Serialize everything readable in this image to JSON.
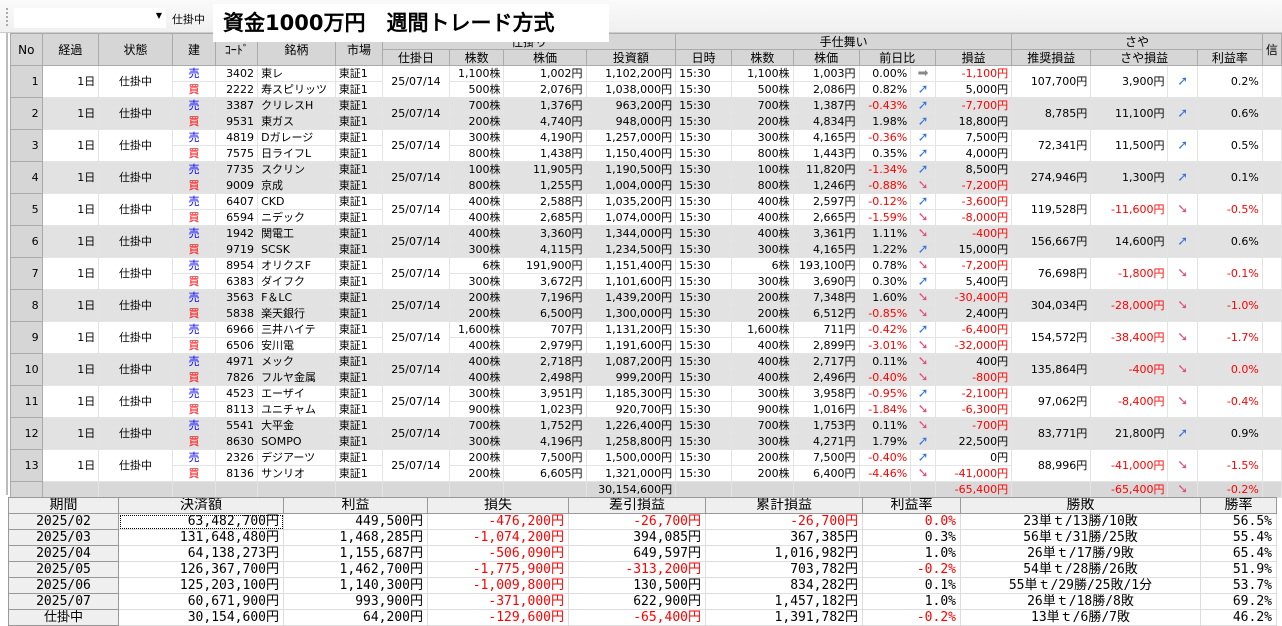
{
  "toolbar": {
    "combo_value": "",
    "status_filter": "仕掛中",
    "title": "資金1000万円　週間トレード方式"
  },
  "colors": {
    "negative": "#ff0000",
    "sell": "#0000ff",
    "buy": "#ff0000",
    "arrow_up": "#3a78d8",
    "arrow_down": "#e0507a"
  },
  "headers": {
    "no": "No",
    "elapsed": "経過",
    "status": "状態",
    "side": "建",
    "code": "ｺｰﾄﾞ",
    "name": "銘柄",
    "market": "市場",
    "entry_group": "仕掛り",
    "entry_date": "仕掛日",
    "entry_qty": "株数",
    "entry_price": "株価",
    "invest": "投資額",
    "exit_group": "手仕舞い",
    "time": "日時",
    "qty": "株数",
    "price": "株価",
    "change": "前日比",
    "pl": "損益",
    "saya_group": "さや",
    "rec_pl": "推奨損益",
    "saya_pl": "さや損益",
    "rate": "利益率",
    "extra": "信"
  },
  "rows": [
    {
      "no": "1",
      "elapsed": "1日",
      "status": "仕掛中",
      "date": "25/07/14",
      "rec_pl": "107,700円",
      "saya_pl": "3,900円",
      "saya_dir": "up",
      "rate": "0.2%",
      "legs": [
        {
          "side": "売",
          "code": "3402",
          "name": "東レ",
          "market": "東証1",
          "qty": "1,100株",
          "price": "1,002円",
          "invest": "1,102,200円",
          "time": "15:30",
          "cur_qty": "1,100株",
          "cur_price": "1,003円",
          "change": "0.00%",
          "dir": "flat",
          "pl": "-1,100円"
        },
        {
          "side": "買",
          "code": "2222",
          "name": "寿スピリッツ",
          "market": "東証1",
          "qty": "500株",
          "price": "2,076円",
          "invest": "1,038,000円",
          "time": "15:30",
          "cur_qty": "500株",
          "cur_price": "2,086円",
          "change": "0.82%",
          "dir": "up",
          "pl": "5,000円"
        }
      ]
    },
    {
      "no": "2",
      "elapsed": "1日",
      "status": "仕掛中",
      "date": "25/07/14",
      "rec_pl": "8,785円",
      "saya_pl": "11,100円",
      "saya_dir": "up",
      "rate": "0.6%",
      "legs": [
        {
          "side": "売",
          "code": "3387",
          "name": "クリレスH",
          "market": "東証1",
          "qty": "700株",
          "price": "1,376円",
          "invest": "963,200円",
          "time": "15:30",
          "cur_qty": "700株",
          "cur_price": "1,387円",
          "change": "-0.43%",
          "dir": "up",
          "pl": "-7,700円"
        },
        {
          "side": "買",
          "code": "9531",
          "name": "東ガス",
          "market": "東証1",
          "qty": "200株",
          "price": "4,740円",
          "invest": "948,000円",
          "time": "15:30",
          "cur_qty": "200株",
          "cur_price": "4,834円",
          "change": "1.98%",
          "dir": "up",
          "pl": "18,800円"
        }
      ]
    },
    {
      "no": "3",
      "elapsed": "1日",
      "status": "仕掛中",
      "date": "25/07/14",
      "rec_pl": "72,341円",
      "saya_pl": "11,500円",
      "saya_dir": "up",
      "rate": "0.5%",
      "legs": [
        {
          "side": "売",
          "code": "4819",
          "name": "Dガレージ",
          "market": "東証1",
          "qty": "300株",
          "price": "4,190円",
          "invest": "1,257,000円",
          "time": "15:30",
          "cur_qty": "300株",
          "cur_price": "4,165円",
          "change": "-0.36%",
          "dir": "up",
          "pl": "7,500円"
        },
        {
          "side": "買",
          "code": "7575",
          "name": "日ライフL",
          "market": "東証1",
          "qty": "800株",
          "price": "1,438円",
          "invest": "1,150,400円",
          "time": "15:30",
          "cur_qty": "800株",
          "cur_price": "1,443円",
          "change": "0.35%",
          "dir": "up",
          "pl": "4,000円"
        }
      ]
    },
    {
      "no": "4",
      "elapsed": "1日",
      "status": "仕掛中",
      "date": "25/07/14",
      "rec_pl": "274,946円",
      "saya_pl": "1,300円",
      "saya_dir": "up",
      "rate": "0.1%",
      "legs": [
        {
          "side": "売",
          "code": "7735",
          "name": "スクリン",
          "market": "東証1",
          "qty": "100株",
          "price": "11,905円",
          "invest": "1,190,500円",
          "time": "15:30",
          "cur_qty": "100株",
          "cur_price": "11,820円",
          "change": "-1.34%",
          "dir": "up",
          "pl": "8,500円"
        },
        {
          "side": "買",
          "code": "9009",
          "name": "京成",
          "market": "東証1",
          "qty": "800株",
          "price": "1,255円",
          "invest": "1,004,000円",
          "time": "15:30",
          "cur_qty": "800株",
          "cur_price": "1,246円",
          "change": "-0.88%",
          "dir": "down",
          "pl": "-7,200円"
        }
      ]
    },
    {
      "no": "5",
      "elapsed": "1日",
      "status": "仕掛中",
      "date": "25/07/14",
      "rec_pl": "119,528円",
      "saya_pl": "-11,600円",
      "saya_dir": "down",
      "rate": "-0.5%",
      "legs": [
        {
          "side": "売",
          "code": "6407",
          "name": "CKD",
          "market": "東証1",
          "qty": "400株",
          "price": "2,588円",
          "invest": "1,035,200円",
          "time": "15:30",
          "cur_qty": "400株",
          "cur_price": "2,597円",
          "change": "-0.12%",
          "dir": "up",
          "pl": "-3,600円"
        },
        {
          "side": "買",
          "code": "6594",
          "name": "ニデック",
          "market": "東証1",
          "qty": "400株",
          "price": "2,685円",
          "invest": "1,074,000円",
          "time": "15:30",
          "cur_qty": "400株",
          "cur_price": "2,665円",
          "change": "-1.59%",
          "dir": "down",
          "pl": "-8,000円"
        }
      ]
    },
    {
      "no": "6",
      "elapsed": "1日",
      "status": "仕掛中",
      "date": "25/07/14",
      "rec_pl": "156,667円",
      "saya_pl": "14,600円",
      "saya_dir": "up",
      "rate": "0.6%",
      "legs": [
        {
          "side": "売",
          "code": "1942",
          "name": "関電工",
          "market": "東証1",
          "qty": "400株",
          "price": "3,360円",
          "invest": "1,344,000円",
          "time": "15:30",
          "cur_qty": "400株",
          "cur_price": "3,361円",
          "change": "1.11%",
          "dir": "down",
          "pl": "-400円"
        },
        {
          "side": "買",
          "code": "9719",
          "name": "SCSK",
          "market": "東証1",
          "qty": "300株",
          "price": "4,115円",
          "invest": "1,234,500円",
          "time": "15:30",
          "cur_qty": "300株",
          "cur_price": "4,165円",
          "change": "1.22%",
          "dir": "up",
          "pl": "15,000円"
        }
      ]
    },
    {
      "no": "7",
      "elapsed": "1日",
      "status": "仕掛中",
      "date": "25/07/14",
      "rec_pl": "76,698円",
      "saya_pl": "-1,800円",
      "saya_dir": "down",
      "rate": "-0.1%",
      "legs": [
        {
          "side": "売",
          "code": "8954",
          "name": "オリクスF",
          "market": "東証1",
          "qty": "6株",
          "price": "191,900円",
          "invest": "1,151,400円",
          "time": "15:30",
          "cur_qty": "6株",
          "cur_price": "193,100円",
          "change": "0.78%",
          "dir": "down",
          "pl": "-7,200円"
        },
        {
          "side": "買",
          "code": "6383",
          "name": "ダイフク",
          "market": "東証1",
          "qty": "300株",
          "price": "3,672円",
          "invest": "1,101,600円",
          "time": "15:30",
          "cur_qty": "300株",
          "cur_price": "3,690円",
          "change": "0.30%",
          "dir": "up",
          "pl": "5,400円"
        }
      ]
    },
    {
      "no": "8",
      "elapsed": "1日",
      "status": "仕掛中",
      "date": "25/07/14",
      "rec_pl": "304,034円",
      "saya_pl": "-28,000円",
      "saya_dir": "down",
      "rate": "-1.0%",
      "legs": [
        {
          "side": "売",
          "code": "3563",
          "name": "F＆LC",
          "market": "東証1",
          "qty": "200株",
          "price": "7,196円",
          "invest": "1,439,200円",
          "time": "15:30",
          "cur_qty": "200株",
          "cur_price": "7,348円",
          "change": "1.60%",
          "dir": "down",
          "pl": "-30,400円"
        },
        {
          "side": "買",
          "code": "5838",
          "name": "楽天銀行",
          "market": "東証1",
          "qty": "200株",
          "price": "6,500円",
          "invest": "1,300,000円",
          "time": "15:30",
          "cur_qty": "200株",
          "cur_price": "6,512円",
          "change": "-0.85%",
          "dir": "down",
          "pl": "2,400円"
        }
      ]
    },
    {
      "no": "9",
      "elapsed": "1日",
      "status": "仕掛中",
      "date": "25/07/14",
      "rec_pl": "154,572円",
      "saya_pl": "-38,400円",
      "saya_dir": "down",
      "rate": "-1.7%",
      "legs": [
        {
          "side": "売",
          "code": "6966",
          "name": "三井ハイテ",
          "market": "東証1",
          "qty": "1,600株",
          "price": "707円",
          "invest": "1,131,200円",
          "time": "15:30",
          "cur_qty": "1,600株",
          "cur_price": "711円",
          "change": "-0.42%",
          "dir": "up",
          "pl": "-6,400円"
        },
        {
          "side": "買",
          "code": "6506",
          "name": "安川電",
          "market": "東証1",
          "qty": "400株",
          "price": "2,979円",
          "invest": "1,191,600円",
          "time": "15:30",
          "cur_qty": "400株",
          "cur_price": "2,899円",
          "change": "-3.01%",
          "dir": "down",
          "pl": "-32,000円"
        }
      ]
    },
    {
      "no": "10",
      "elapsed": "1日",
      "status": "仕掛中",
      "date": "25/07/14",
      "rec_pl": "135,864円",
      "saya_pl": "-400円",
      "saya_dir": "down",
      "rate": "0.0%",
      "legs": [
        {
          "side": "売",
          "code": "4971",
          "name": "メック",
          "market": "東証1",
          "qty": "400株",
          "price": "2,718円",
          "invest": "1,087,200円",
          "time": "15:30",
          "cur_qty": "400株",
          "cur_price": "2,717円",
          "change": "0.11%",
          "dir": "down",
          "pl": "400円"
        },
        {
          "side": "買",
          "code": "7826",
          "name": "フルヤ金属",
          "market": "東証1",
          "qty": "400株",
          "price": "2,498円",
          "invest": "999,200円",
          "time": "15:30",
          "cur_qty": "400株",
          "cur_price": "2,496円",
          "change": "-0.40%",
          "dir": "down",
          "pl": "-800円"
        }
      ]
    },
    {
      "no": "11",
      "elapsed": "1日",
      "status": "仕掛中",
      "date": "25/07/14",
      "rec_pl": "97,062円",
      "saya_pl": "-8,400円",
      "saya_dir": "down",
      "rate": "-0.4%",
      "legs": [
        {
          "side": "売",
          "code": "4523",
          "name": "エーザイ",
          "market": "東証1",
          "qty": "300株",
          "price": "3,951円",
          "invest": "1,185,300円",
          "time": "15:30",
          "cur_qty": "300株",
          "cur_price": "3,958円",
          "change": "-0.95%",
          "dir": "up",
          "pl": "-2,100円"
        },
        {
          "side": "買",
          "code": "8113",
          "name": "ユニチャム",
          "market": "東証1",
          "qty": "900株",
          "price": "1,023円",
          "invest": "920,700円",
          "time": "15:30",
          "cur_qty": "900株",
          "cur_price": "1,016円",
          "change": "-1.84%",
          "dir": "down",
          "pl": "-6,300円"
        }
      ]
    },
    {
      "no": "12",
      "elapsed": "1日",
      "status": "仕掛中",
      "date": "25/07/14",
      "rec_pl": "83,771円",
      "saya_pl": "21,800円",
      "saya_dir": "up",
      "rate": "0.9%",
      "legs": [
        {
          "side": "売",
          "code": "5541",
          "name": "大平金",
          "market": "東証1",
          "qty": "700株",
          "price": "1,752円",
          "invest": "1,226,400円",
          "time": "15:30",
          "cur_qty": "700株",
          "cur_price": "1,753円",
          "change": "0.11%",
          "dir": "down",
          "pl": "-700円"
        },
        {
          "side": "買",
          "code": "8630",
          "name": "SOMPO",
          "market": "東証1",
          "qty": "300株",
          "price": "4,196円",
          "invest": "1,258,800円",
          "time": "15:30",
          "cur_qty": "300株",
          "cur_price": "4,271円",
          "change": "1.79%",
          "dir": "up",
          "pl": "22,500円"
        }
      ]
    },
    {
      "no": "13",
      "elapsed": "1日",
      "status": "仕掛中",
      "date": "25/07/14",
      "rec_pl": "88,996円",
      "saya_pl": "-41,000円",
      "saya_dir": "down",
      "rate": "-1.5%",
      "legs": [
        {
          "side": "売",
          "code": "2326",
          "name": "デジアーツ",
          "market": "東証1",
          "qty": "200株",
          "price": "7,500円",
          "invest": "1,500,000円",
          "time": "15:30",
          "cur_qty": "200株",
          "cur_price": "7,500円",
          "change": "-0.40%",
          "dir": "up",
          "pl": "0円"
        },
        {
          "side": "買",
          "code": "8136",
          "name": "サンリオ",
          "market": "東証1",
          "qty": "200株",
          "price": "6,605円",
          "invest": "1,321,000円",
          "time": "15:30",
          "cur_qty": "200株",
          "cur_price": "6,400円",
          "change": "-4.46%",
          "dir": "down",
          "pl": "-41,000円"
        }
      ]
    }
  ],
  "totals": {
    "invest": "30,154,600円",
    "pl": "-65,400円",
    "saya_pl": "-65,400円",
    "saya_dir": "down",
    "rate": "-0.2%"
  },
  "summary": {
    "headers": [
      "期間",
      "決済額",
      "利益",
      "損失",
      "差引損益",
      "累計損益",
      "利益率",
      "勝敗",
      "勝率"
    ],
    "rows": [
      [
        "2025/02",
        "63,482,700円",
        "449,500円",
        "-476,200円",
        "-26,700円",
        "-26,700円",
        "0.0%",
        "23単ｔ/13勝/10敗",
        "56.5%"
      ],
      [
        "2025/03",
        "131,648,480円",
        "1,468,285円",
        "-1,074,200円",
        "394,085円",
        "367,385円",
        "0.3%",
        "56単ｔ/31勝/25敗",
        "55.4%"
      ],
      [
        "2025/04",
        "64,138,273円",
        "1,155,687円",
        "-506,090円",
        "649,597円",
        "1,016,982円",
        "1.0%",
        "26単ｔ/17勝/9敗",
        "65.4%"
      ],
      [
        "2025/05",
        "126,367,700円",
        "1,462,700円",
        "-1,775,900円",
        "-313,200円",
        "703,782円",
        "-0.2%",
        "54単ｔ/28勝/26敗",
        "51.9%"
      ],
      [
        "2025/06",
        "125,203,100円",
        "1,140,300円",
        "-1,009,800円",
        "130,500円",
        "834,282円",
        "0.1%",
        "55単ｔ/29勝/25敗/1分",
        "53.7%"
      ],
      [
        "2025/07",
        "60,671,900円",
        "993,900円",
        "-371,000円",
        "622,900円",
        "1,457,182円",
        "1.0%",
        "26単ｔ/18勝/8敗",
        "69.2%"
      ],
      [
        "仕掛中",
        "30,154,600円",
        "64,200円",
        "-129,600円",
        "-65,400円",
        "1,391,782円",
        "-0.2%",
        "13単ｔ/6勝/7敗",
        "46.2%"
      ]
    ]
  }
}
